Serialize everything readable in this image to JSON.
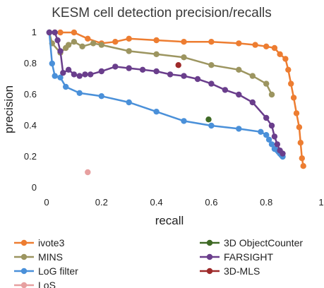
{
  "chart_data": {
    "type": "scatter",
    "title": "KESM cell detection precision/recalls",
    "xlabel": "recall",
    "ylabel": "precision",
    "xlim": [
      0,
      1
    ],
    "ylim": [
      0,
      1
    ],
    "x_ticks": [
      "0",
      "0.2",
      "0.4",
      "0.6",
      "0.8",
      "1"
    ],
    "y_ticks": [
      "0",
      "0.2",
      "0.4",
      "0.6",
      "0.8",
      "1"
    ],
    "grid": false,
    "legend_position": "bottom",
    "series": [
      {
        "name": "ivote3",
        "color": "#ED7D31",
        "points": [
          [
            0.01,
            1.0
          ],
          [
            0.03,
            1.0
          ],
          [
            0.05,
            1.0
          ],
          [
            0.1,
            1.0
          ],
          [
            0.15,
            0.96
          ],
          [
            0.2,
            0.93
          ],
          [
            0.25,
            0.94
          ],
          [
            0.3,
            0.96
          ],
          [
            0.4,
            0.95
          ],
          [
            0.5,
            0.94
          ],
          [
            0.6,
            0.94
          ],
          [
            0.7,
            0.93
          ],
          [
            0.76,
            0.92
          ],
          [
            0.8,
            0.91
          ],
          [
            0.83,
            0.9
          ],
          [
            0.85,
            0.86
          ],
          [
            0.87,
            0.83
          ],
          [
            0.88,
            0.76
          ],
          [
            0.89,
            0.67
          ],
          [
            0.9,
            0.58
          ],
          [
            0.91,
            0.48
          ],
          [
            0.92,
            0.39
          ],
          [
            0.925,
            0.29
          ],
          [
            0.93,
            0.19
          ],
          [
            0.935,
            0.14
          ]
        ]
      },
      {
        "name": "MINS",
        "color": "#9C9560",
        "points": [
          [
            0.01,
            1.0
          ],
          [
            0.02,
            0.93
          ],
          [
            0.05,
            0.87
          ],
          [
            0.07,
            0.9
          ],
          [
            0.08,
            0.92
          ],
          [
            0.1,
            0.94
          ],
          [
            0.13,
            0.91
          ],
          [
            0.17,
            0.93
          ],
          [
            0.2,
            0.92
          ],
          [
            0.3,
            0.88
          ],
          [
            0.4,
            0.86
          ],
          [
            0.5,
            0.84
          ],
          [
            0.6,
            0.79
          ],
          [
            0.7,
            0.76
          ],
          [
            0.75,
            0.72
          ],
          [
            0.8,
            0.67
          ],
          [
            0.82,
            0.6
          ]
        ]
      },
      {
        "name": "LoG filter",
        "color": "#4A90D9",
        "points": [
          [
            0.01,
            1.0
          ],
          [
            0.02,
            0.8
          ],
          [
            0.03,
            0.72
          ],
          [
            0.05,
            0.71
          ],
          [
            0.07,
            0.65
          ],
          [
            0.12,
            0.61
          ],
          [
            0.2,
            0.59
          ],
          [
            0.3,
            0.55
          ],
          [
            0.4,
            0.49
          ],
          [
            0.5,
            0.43
          ],
          [
            0.6,
            0.4
          ],
          [
            0.7,
            0.38
          ],
          [
            0.78,
            0.36
          ],
          [
            0.8,
            0.34
          ],
          [
            0.81,
            0.31
          ],
          [
            0.82,
            0.28
          ],
          [
            0.83,
            0.25
          ],
          [
            0.84,
            0.24
          ],
          [
            0.845,
            0.23
          ],
          [
            0.85,
            0.22
          ],
          [
            0.855,
            0.21
          ],
          [
            0.86,
            0.2
          ]
        ]
      },
      {
        "name": "LoS",
        "color": "#E7A0A0",
        "points": [
          [
            0.15,
            0.1
          ]
        ]
      },
      {
        "name": "3D ObjectCounter",
        "color": "#3F6A25",
        "points": [
          [
            0.59,
            0.44
          ]
        ]
      },
      {
        "name": "FARSIGHT",
        "color": "#6A3E8C",
        "points": [
          [
            0.01,
            1.0
          ],
          [
            0.03,
            1.0
          ],
          [
            0.04,
            0.95
          ],
          [
            0.05,
            0.88
          ],
          [
            0.06,
            0.74
          ],
          [
            0.08,
            0.76
          ],
          [
            0.1,
            0.73
          ],
          [
            0.12,
            0.72
          ],
          [
            0.14,
            0.73
          ],
          [
            0.16,
            0.73
          ],
          [
            0.2,
            0.75
          ],
          [
            0.25,
            0.78
          ],
          [
            0.3,
            0.77
          ],
          [
            0.35,
            0.76
          ],
          [
            0.4,
            0.75
          ],
          [
            0.45,
            0.73
          ],
          [
            0.5,
            0.72
          ],
          [
            0.55,
            0.7
          ],
          [
            0.6,
            0.67
          ],
          [
            0.65,
            0.63
          ],
          [
            0.7,
            0.6
          ],
          [
            0.75,
            0.55
          ],
          [
            0.8,
            0.45
          ],
          [
            0.82,
            0.4
          ],
          [
            0.83,
            0.33
          ],
          [
            0.84,
            0.28
          ],
          [
            0.85,
            0.24
          ],
          [
            0.86,
            0.22
          ]
        ]
      },
      {
        "name": "3D-MLS",
        "color": "#9E2A2A",
        "points": [
          [
            0.48,
            0.79
          ]
        ]
      }
    ]
  }
}
